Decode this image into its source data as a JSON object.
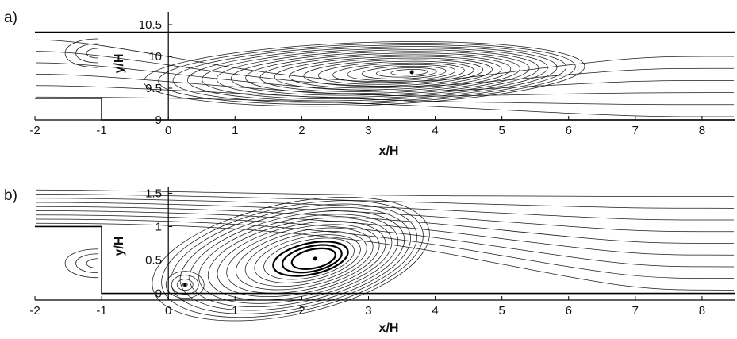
{
  "chart_data": [
    {
      "type": "streamline",
      "panel_label": "a)",
      "xlabel": "x/H",
      "ylabel": "y/H",
      "xlim": [
        -2,
        8.5
      ],
      "ylim": [
        9,
        10.7
      ],
      "xticks": [
        -2,
        -1,
        0,
        1,
        2,
        3,
        4,
        5,
        6,
        7,
        8
      ],
      "yticks": [
        9,
        9.5,
        10,
        10.5
      ],
      "channel": {
        "upstream_floor": 9.34,
        "downstream_floor": 9.0,
        "top": 10.38,
        "step_x": -1
      },
      "vortex_center": [
        3.65,
        9.75
      ]
    },
    {
      "type": "streamline",
      "panel_label": "b)",
      "xlabel": "x/H",
      "ylabel": "y/H",
      "xlim": [
        -2,
        8.5
      ],
      "ylim": [
        -0.1,
        1.6
      ],
      "xticks": [
        -2,
        -1,
        0,
        1,
        2,
        3,
        4,
        5,
        6,
        7,
        8
      ],
      "yticks": [
        0,
        0.5,
        1,
        1.5
      ],
      "channel": {
        "upstream_floor": 1.0,
        "downstream_floor": 0,
        "step_x": -1
      },
      "vortex_center": [
        2.2,
        0.52
      ],
      "secondary_vortex": [
        0.25,
        0.13
      ]
    }
  ]
}
